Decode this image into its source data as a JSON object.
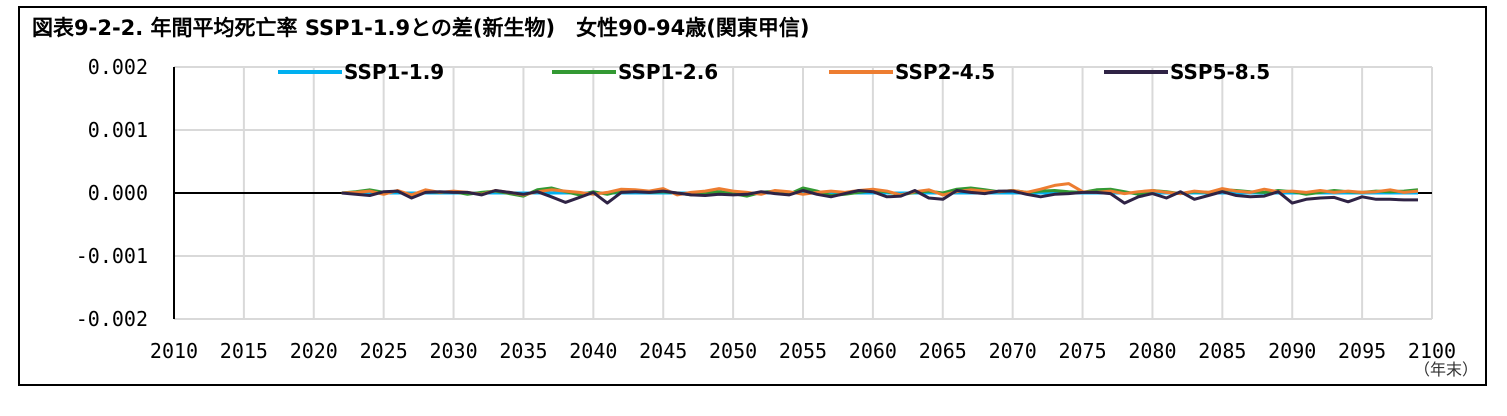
{
  "chart_data": {
    "type": "line",
    "title": "図表9-2-2. 年間平均死亡率 SSP1-1.9との差(新生物)　女性90-94歳(関東甲信)",
    "xlabel": "",
    "ylabel": "",
    "x_unit_label": "（年末）",
    "xlim": [
      2010,
      2100
    ],
    "ylim": [
      -0.002,
      0.002
    ],
    "x_ticks": [
      2010,
      2015,
      2020,
      2025,
      2030,
      2035,
      2040,
      2045,
      2050,
      2055,
      2060,
      2065,
      2070,
      2075,
      2080,
      2085,
      2090,
      2095,
      2100
    ],
    "x_tick_labels": [
      "2010",
      "2015",
      "2020",
      "2025",
      "2030",
      "2035",
      "2040",
      "2045",
      "2050",
      "2055",
      "2060",
      "2065",
      "2070",
      "2075",
      "2080",
      "2085",
      "2090",
      "2095",
      "2100"
    ],
    "y_ticks": [
      0.002,
      0.001,
      0.0,
      -0.001,
      -0.002
    ],
    "y_tick_labels": [
      "0.002",
      "0.001",
      "0.000",
      "-0.001",
      "-0.002"
    ],
    "grid": {
      "vertical": true,
      "horizontal": true
    },
    "legend_position": "top",
    "x": [
      2022,
      2023,
      2024,
      2025,
      2026,
      2027,
      2028,
      2029,
      2030,
      2031,
      2032,
      2033,
      2034,
      2035,
      2036,
      2037,
      2038,
      2039,
      2040,
      2041,
      2042,
      2043,
      2044,
      2045,
      2046,
      2047,
      2048,
      2049,
      2050,
      2051,
      2052,
      2053,
      2054,
      2055,
      2056,
      2057,
      2058,
      2059,
      2060,
      2061,
      2062,
      2063,
      2064,
      2065,
      2066,
      2067,
      2068,
      2069,
      2070,
      2071,
      2072,
      2073,
      2074,
      2075,
      2076,
      2077,
      2078,
      2079,
      2080,
      2081,
      2082,
      2083,
      2084,
      2085,
      2086,
      2087,
      2088,
      2089,
      2090,
      2091,
      2092,
      2093,
      2094,
      2095,
      2096,
      2097,
      2098,
      2099
    ],
    "series": [
      {
        "name": "SSP1-1.9",
        "color": "#00B0F0",
        "values": [
          0,
          0,
          0,
          0,
          0,
          0,
          0,
          0,
          0,
          0,
          0,
          0,
          0,
          0,
          0,
          0,
          0,
          0,
          0,
          0,
          0,
          0,
          0,
          0,
          0,
          0,
          0,
          0,
          0,
          0,
          0,
          0,
          0,
          0,
          0,
          0,
          0,
          0,
          0,
          0,
          0,
          0,
          0,
          0,
          0,
          0,
          0,
          0,
          0,
          0,
          0,
          0,
          0,
          0,
          0,
          0,
          0,
          0,
          0,
          0,
          0,
          0,
          0,
          0,
          0,
          0,
          0,
          0,
          0,
          0,
          0,
          0,
          0,
          0,
          0,
          0,
          0,
          0
        ]
      },
      {
        "name": "SSP1-2.6",
        "color": "#339933",
        "values": [
          0,
          2e-05,
          5e-05,
          1e-05,
          3e-05,
          -4e-05,
          2e-05,
          1e-05,
          2e-05,
          -2e-05,
          1e-05,
          3e-05,
          -1e-05,
          -5e-05,
          5e-05,
          8e-05,
          2e-05,
          -3e-05,
          2e-05,
          -2e-05,
          3e-05,
          4e-05,
          1e-05,
          2e-05,
          0,
          -3e-05,
          0,
          2e-05,
          -1e-05,
          -5e-05,
          1e-05,
          3e-05,
          -2e-05,
          8e-05,
          3e-05,
          -4e-05,
          -2e-05,
          1e-05,
          4e-05,
          2e-05,
          -3e-05,
          1e-05,
          3e-05,
          0,
          6e-05,
          8e-05,
          5e-05,
          2e-05,
          4e-05,
          1e-05,
          3e-05,
          4e-05,
          2e-05,
          1e-05,
          5e-05,
          6e-05,
          2e-05,
          -2e-05,
          4e-05,
          2e-05,
          -1e-05,
          2e-05,
          1e-05,
          5e-05,
          4e-05,
          2e-05,
          1e-05,
          4e-05,
          2e-05,
          -2e-05,
          1e-05,
          4e-05,
          2e-05,
          1e-05,
          3e-05,
          2e-05,
          3e-05,
          5e-05
        ]
      },
      {
        "name": "SSP2-4.5",
        "color": "#ED7D31",
        "values": [
          0,
          1e-05,
          3e-05,
          -2e-05,
          4e-05,
          -3e-05,
          5e-05,
          1e-05,
          3e-05,
          1e-05,
          -2e-05,
          4e-05,
          1e-05,
          -3e-05,
          2e-05,
          5e-05,
          3e-05,
          1e-05,
          -2e-05,
          1e-05,
          6e-05,
          5e-05,
          3e-05,
          7e-05,
          -3e-05,
          1e-05,
          3e-05,
          7e-05,
          3e-05,
          1e-05,
          -2e-05,
          4e-05,
          2e-05,
          -2e-05,
          1e-05,
          3e-05,
          1e-05,
          4e-05,
          6e-05,
          3e-05,
          -3e-05,
          2e-05,
          5e-05,
          -3e-05,
          2e-05,
          5e-05,
          3e-05,
          2e-05,
          4e-05,
          1e-05,
          6e-05,
          0.00012,
          0.00015,
          2e-05,
          1e-05,
          3e-05,
          -1e-05,
          2e-05,
          4e-05,
          1e-05,
          -1e-05,
          3e-05,
          1e-05,
          7e-05,
          3e-05,
          1e-05,
          6e-05,
          2e-05,
          3e-05,
          1e-05,
          4e-05,
          1e-05,
          3e-05,
          1e-05,
          2e-05,
          5e-05,
          1e-05,
          3e-05
        ]
      },
      {
        "name": "SSP5-8.5",
        "color": "#2F2345",
        "values": [
          0,
          -2e-05,
          -4e-05,
          2e-05,
          3e-05,
          -8e-05,
          1e-05,
          2e-05,
          1e-05,
          1e-05,
          -3e-05,
          4e-05,
          1e-05,
          -2e-05,
          2e-05,
          -6e-05,
          -0.00015,
          -7e-05,
          1e-05,
          -0.00016,
          1e-05,
          2e-05,
          1e-05,
          3e-05,
          0,
          -3e-05,
          -4e-05,
          -2e-05,
          -3e-05,
          -2e-05,
          2e-05,
          -1e-05,
          -3e-05,
          4e-05,
          -2e-05,
          -6e-05,
          -1e-05,
          4e-05,
          2e-05,
          -6e-05,
          -5e-05,
          4e-05,
          -8e-05,
          -0.0001,
          4e-05,
          1e-05,
          -1e-05,
          3e-05,
          3e-05,
          -2e-05,
          -6e-05,
          -2e-05,
          -1e-05,
          1e-05,
          1e-05,
          -1e-05,
          -0.00016,
          -6e-05,
          -1e-05,
          -8e-05,
          2e-05,
          -0.0001,
          -4e-05,
          2e-05,
          -4e-05,
          -6e-05,
          -5e-05,
          2e-05,
          -0.00016,
          -0.0001,
          -8e-05,
          -7e-05,
          -0.00014,
          -6e-05,
          -0.0001,
          -0.0001,
          -0.00011,
          -0.00011
        ]
      }
    ]
  }
}
